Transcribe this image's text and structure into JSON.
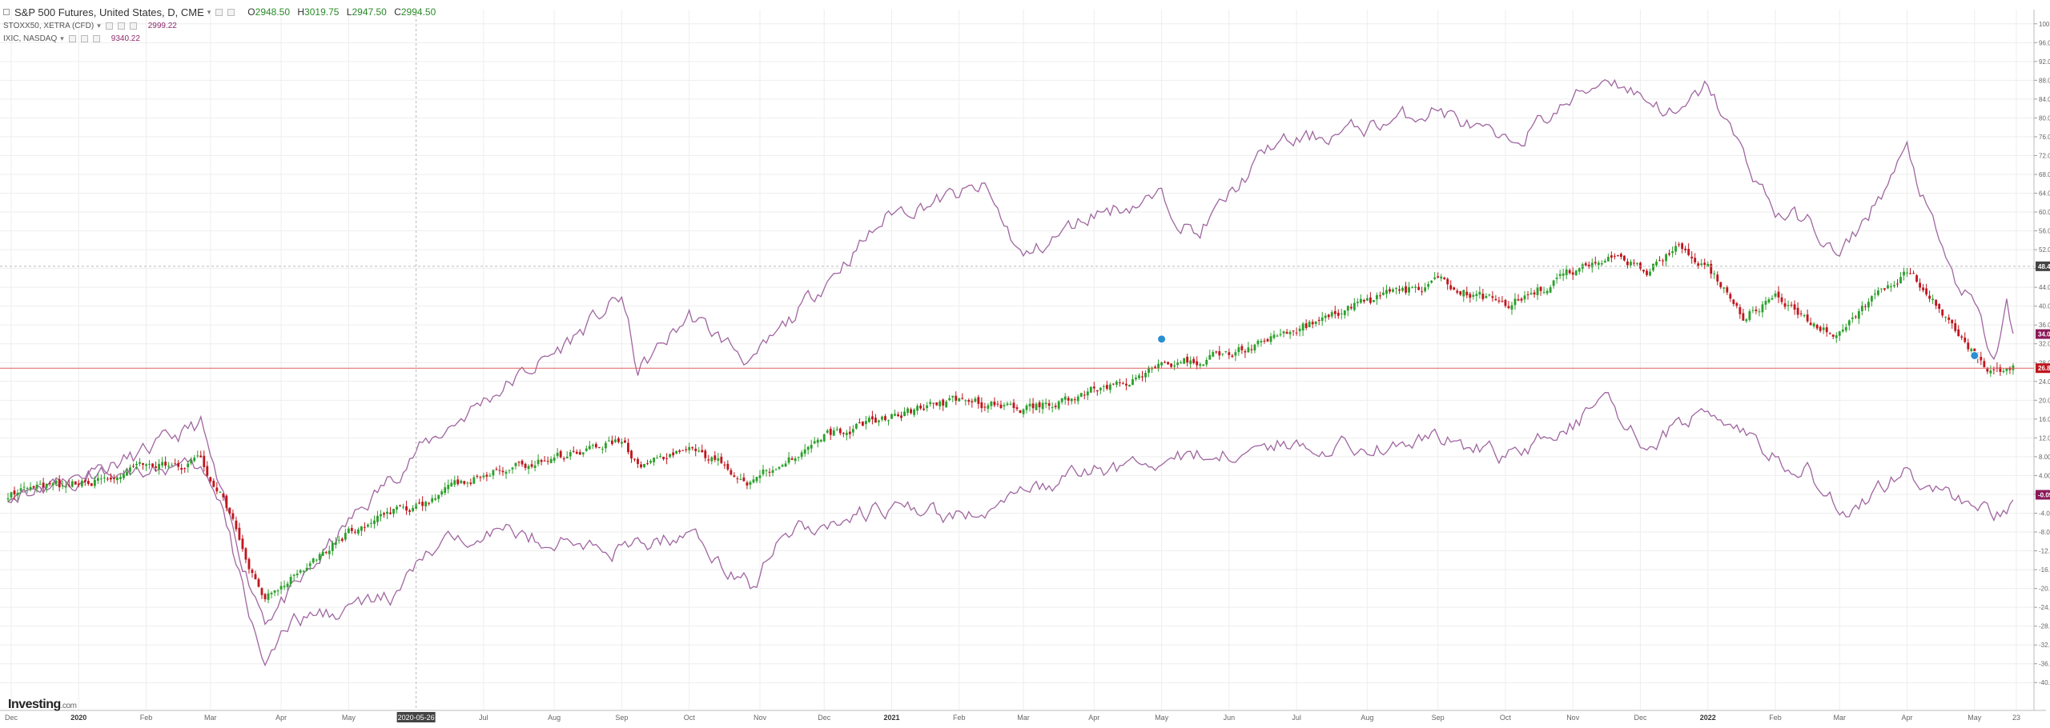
{
  "legend": {
    "main": {
      "title": "S&P 500 Futures, United States, D, CME",
      "open_label": "O",
      "open": "2948.50",
      "high_label": "H",
      "high": "3019.75",
      "low_label": "L",
      "low": "2947.50",
      "close_label": "C",
      "close": "2994.50"
    },
    "compare": [
      {
        "title": "STOXX50, XETRA (CFD)",
        "value": "2999.22"
      },
      {
        "title": "IXIC, NASDAQ",
        "value": "9340.22"
      }
    ]
  },
  "logo": {
    "brand": "Investing",
    "suffix": ".com"
  },
  "colors": {
    "up": "#2ca02c",
    "down": "#c0161e",
    "compare_line": "#a066a0",
    "grid": "#eeeeee",
    "price_line": "#e06060",
    "crosshair_bg": "#444444",
    "badge_compare": "#8b1a5a"
  },
  "crosshair": {
    "date_label": "2020-05-26",
    "value_label": "48.47"
  },
  "last_price_line": "26.82%",
  "chart_data": {
    "type": "line",
    "title": "",
    "xlabel": "",
    "ylabel": "",
    "ylim": [
      -42,
      102
    ],
    "y_unit": "%",
    "y_ticks": [
      -40,
      -36,
      -32,
      -28,
      -24,
      -20,
      -16,
      -12,
      -8,
      -4,
      0,
      4,
      8,
      12,
      16,
      20,
      24,
      28,
      32,
      36,
      40,
      44,
      48,
      52,
      56,
      60,
      64,
      68,
      72,
      76,
      80,
      84,
      88,
      92,
      96,
      100
    ],
    "x_ticks": [
      {
        "label": "Dec",
        "t": 1
      },
      {
        "label": "2020",
        "t": 22
      },
      {
        "label": "Feb",
        "t": 43
      },
      {
        "label": "Mar",
        "t": 63
      },
      {
        "label": "Apr",
        "t": 85
      },
      {
        "label": "May",
        "t": 106
      },
      {
        "label": "Jul",
        "t": 148
      },
      {
        "label": "Aug",
        "t": 170
      },
      {
        "label": "Sep",
        "t": 191
      },
      {
        "label": "Oct",
        "t": 212
      },
      {
        "label": "Nov",
        "t": 234
      },
      {
        "label": "Dec",
        "t": 254
      },
      {
        "label": "2021",
        "t": 275
      },
      {
        "label": "Feb",
        "t": 296
      },
      {
        "label": "Mar",
        "t": 316
      },
      {
        "label": "Apr",
        "t": 338
      },
      {
        "label": "May",
        "t": 359
      },
      {
        "label": "Jun",
        "t": 380
      },
      {
        "label": "Jul",
        "t": 401
      },
      {
        "label": "Aug",
        "t": 423
      },
      {
        "label": "Sep",
        "t": 445
      },
      {
        "label": "Oct",
        "t": 466
      },
      {
        "label": "Nov",
        "t": 487
      },
      {
        "label": "Dec",
        "t": 508
      },
      {
        "label": "2022",
        "t": 529
      },
      {
        "label": "Feb",
        "t": 550
      },
      {
        "label": "Mar",
        "t": 570
      },
      {
        "label": "Apr",
        "t": 591
      },
      {
        "label": "May",
        "t": 612
      },
      {
        "label": "23",
        "t": 625
      }
    ],
    "x_max": 628,
    "crosshair_t": 127,
    "series": [
      {
        "name": "IXIC, NASDAQ",
        "kind": "line",
        "badge": "34.07%",
        "anchors": [
          [
            0,
            0
          ],
          [
            22,
            4
          ],
          [
            40,
            8
          ],
          [
            60,
            15
          ],
          [
            66,
            0
          ],
          [
            75,
            -18
          ],
          [
            80,
            -26
          ],
          [
            90,
            -20
          ],
          [
            106,
            -6
          ],
          [
            127,
            9
          ],
          [
            148,
            20
          ],
          [
            170,
            30
          ],
          [
            191,
            42
          ],
          [
            196,
            26
          ],
          [
            212,
            38
          ],
          [
            232,
            28
          ],
          [
            254,
            45
          ],
          [
            275,
            60
          ],
          [
            304,
            65
          ],
          [
            316,
            50
          ],
          [
            338,
            60
          ],
          [
            359,
            63
          ],
          [
            370,
            55
          ],
          [
            393,
            74
          ],
          [
            423,
            78
          ],
          [
            445,
            82
          ],
          [
            466,
            74
          ],
          [
            498,
            89
          ],
          [
            520,
            80
          ],
          [
            529,
            87
          ],
          [
            540,
            72
          ],
          [
            550,
            60
          ],
          [
            560,
            58
          ],
          [
            570,
            50
          ],
          [
            584,
            65
          ],
          [
            591,
            73
          ],
          [
            600,
            55
          ],
          [
            606,
            45
          ],
          [
            612,
            40
          ],
          [
            618,
            28
          ],
          [
            622,
            40
          ],
          [
            624,
            33
          ]
        ]
      },
      {
        "name": "STOXX50, XETRA (CFD)",
        "kind": "line",
        "badge": "-0.09%",
        "anchors": [
          [
            0,
            0
          ],
          [
            22,
            3
          ],
          [
            40,
            6
          ],
          [
            60,
            5
          ],
          [
            66,
            -2
          ],
          [
            75,
            -25
          ],
          [
            80,
            -35
          ],
          [
            90,
            -27
          ],
          [
            106,
            -24
          ],
          [
            120,
            -22
          ],
          [
            130,
            -13
          ],
          [
            148,
            -7
          ],
          [
            170,
            -10
          ],
          [
            191,
            -12
          ],
          [
            212,
            -8
          ],
          [
            232,
            -20
          ],
          [
            240,
            -8
          ],
          [
            254,
            -6
          ],
          [
            275,
            -3
          ],
          [
            297,
            -5
          ],
          [
            316,
            0
          ],
          [
            338,
            5
          ],
          [
            359,
            7
          ],
          [
            380,
            9
          ],
          [
            401,
            11
          ],
          [
            423,
            10
          ],
          [
            445,
            12
          ],
          [
            466,
            8
          ],
          [
            498,
            19
          ],
          [
            510,
            10
          ],
          [
            529,
            19
          ],
          [
            545,
            10
          ],
          [
            560,
            5
          ],
          [
            572,
            -5
          ],
          [
            580,
            0
          ],
          [
            591,
            5
          ],
          [
            600,
            1
          ],
          [
            612,
            -2
          ],
          [
            618,
            -4
          ],
          [
            624,
            -1
          ]
        ]
      },
      {
        "name": "S&P 500 Futures, United States, D, CME",
        "kind": "candlestick",
        "badge": "26.82%",
        "anchors": [
          [
            0,
            0
          ],
          [
            22,
            2
          ],
          [
            40,
            5
          ],
          [
            60,
            7
          ],
          [
            66,
            0
          ],
          [
            75,
            -15
          ],
          [
            80,
            -22
          ],
          [
            90,
            -16
          ],
          [
            106,
            -8
          ],
          [
            127,
            -2
          ],
          [
            148,
            4
          ],
          [
            170,
            8
          ],
          [
            191,
            12
          ],
          [
            196,
            6
          ],
          [
            212,
            10
          ],
          [
            230,
            3
          ],
          [
            254,
            12
          ],
          [
            275,
            17
          ],
          [
            297,
            20
          ],
          [
            316,
            18
          ],
          [
            338,
            22
          ],
          [
            359,
            27
          ],
          [
            380,
            30
          ],
          [
            401,
            35
          ],
          [
            423,
            41
          ],
          [
            445,
            45
          ],
          [
            466,
            40
          ],
          [
            498,
            51
          ],
          [
            510,
            48
          ],
          [
            520,
            53
          ],
          [
            529,
            48
          ],
          [
            540,
            38
          ],
          [
            550,
            42
          ],
          [
            560,
            36
          ],
          [
            570,
            34
          ],
          [
            584,
            44
          ],
          [
            591,
            48
          ],
          [
            600,
            40
          ],
          [
            606,
            34
          ],
          [
            612,
            30
          ],
          [
            618,
            26
          ],
          [
            624,
            27
          ]
        ]
      }
    ]
  }
}
